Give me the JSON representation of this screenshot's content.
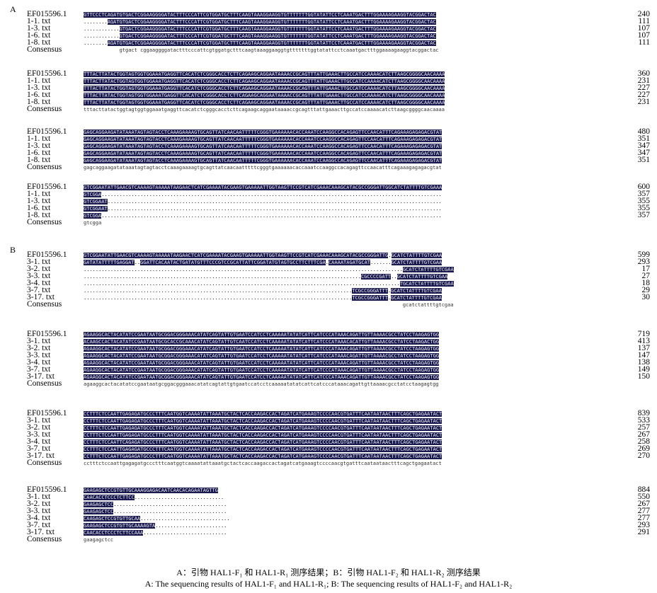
{
  "figure": {
    "panel_a_label": "A",
    "panel_b_label": "B",
    "caption_cn": "A：引物 HAL1-F₁ 和 HAL1-R₁ 测序结果；B：引物 HAL1-F₂ 和 HAL1-R₂ 测序结果",
    "caption_en": "A: The sequencing results of HAL1-F₁ and HAL1-R₁; B: The sequencing results of HAL1-F₂ and HAL1-R₂"
  },
  "colors": {
    "identical": "#1a1a4e",
    "primer": "#8fd3d6",
    "mismatch": "#f1e27c"
  },
  "panel_a": {
    "blocks": [
      {
        "rows": [
          {
            "name": "EF015596.1",
            "num": "240",
            "seq": "GTTCCCTCAGATGTGACTCGGAAGGGGATACTTTCCCATTCGTGGATGCTTTCAAGTAAAGGAAGGTGTTTTTTTGGTATATTCCTCAAATGACTTTGGAAAAGAAGGTACGGACTAC"
          },
          {
            "name": "1-1. txt",
            "num": "111",
            "seq": "........AGATGTGACTCGGAAGGGGATACTTTCCCATTCGTGGATGCTTTCAAGTAAAGGAAGGTGTTTTTTTGGTATATTCCTCAAATGACTTTGGAAAAGAAGGTACGGACTAC"
          },
          {
            "name": "1-3. txt",
            "num": "107",
            "seq": "............GTGACTCGGAAGGGGATACTTTCCCATTCGTGGATGCTTTCAAGTAAAGGAAGGTGTTTTTTTGGTATATTCCTCAAATGACTTTGGAAAAGAAGGTACGGACTAC"
          },
          {
            "name": "1-6. txt",
            "num": "107",
            "seq": "............GTGACTCGGAAGGGGATACTTTCCCATTCGTGGATGCTTTCAAGTAAAGGAAGGTGTTTTTTTGGTATATTCCTCAAATGACTTTGGAAAAGAAGGTACGGACTAC"
          },
          {
            "name": "1-8. txt",
            "num": "111",
            "seq": "........AGATGTGACTCGGAAGGGGATACTTTCCCATTCGTGGATGCTTTCAAGTAAAGGAAGGTGTTTTTTTGGTATATTCCTCAAATGACTTTGGAAAAGAAGGTACGGACTAC"
          },
          {
            "name": "Consensus",
            "num": "",
            "seq": "            gtgact cggaaggggatactttcccattcgtggatgctttcaagtaaaggaaggtgtttttttggtatattcctcaaatgactttggaaaagaaggtacggactac",
            "consensus": true
          }
        ]
      },
      {
        "rows": [
          {
            "name": "EF015596.1",
            "num": "360",
            "seq": "TTTACTTATACTGGTAGTGGTGGAAATGAGGTTCACATCTCGGGCACCTCTTCAGAAGCAGGAATAAAACCGCAGTTTATTGAAACTTGCCATCCAAAACATCTTAAGCGGGGCAACAAAA"
          },
          {
            "name": "1-1. txt",
            "num": "231",
            "seq": "TTTACTTATACTGGTAGTGGTGGAAATGAGGTTCACATCTCGGGCACCTCTTCAGAAGCAGGAATAAAACCGCAGTTTATTGAAACTTGCCATCCAAAACATCTTAAGCGGGGCAACAAAA"
          },
          {
            "name": "1-3. txt",
            "num": "227",
            "seq": "TTTACTTATACTGGTAGTGGTGGAAATGAGGTTCACATCTCGGGCACCTCTTCAGAAGCAGGAATAAAACCGCAGTTTATTGAAACTTGCCATCCAAAACATCTTAAGCGGGGCAACAAAA"
          },
          {
            "name": "1-6. txt",
            "num": "227",
            "seq": "TTTACTTATACTGGTAGTGGTGGAAATGAGGTTCACATCTCGGGCACCTCTTCAGAAGCAGGAATAAAACCGCAGTTTATTGAAACTTGCCATCCAAAACATCTTAAGCGGGGCAACAAAA"
          },
          {
            "name": "1-8. txt",
            "num": "231",
            "seq": "TTTACTTATACTGGTAGTGGTGGAAATGAGGTTCACATCTCGGGCACCTCTTCAGAAGCAGGAATAAAACCGCAGTTTATTGAAACTTGCCATCCAAAACATCTTAAGCGGGGCAACAAAA"
          },
          {
            "name": "Consensus",
            "num": "",
            "seq": "tttacttatactggtagtggtggaaatgaggttcacatctcgggcacctcttcagaagcaggaataaaaccgcagtttattgaaacttgccatccaaaacatcttaagcggggcaacaaaa",
            "consensus": true
          }
        ]
      },
      {
        "rows": [
          {
            "name": "EF015596.1",
            "num": "480",
            "seq": "GAGCAGGAAGATATAAATAGTAGTACCTCAAAGAAAAGTGCAGTTATCAACAATTTTTCGGGTGAAAAAACACCAAATCCAAGGCCACAGAGTTCCAACATTTCAGAAAGAGAGACGTAT"
          },
          {
            "name": "1-1. txt",
            "num": "351",
            "seq": "GAGCAGGAAGATATAAATAGTAGTACCTCAAAGAAAAGTGCAGTTATCAACAATTTTTCGGGTGAAAAAACACCAAATCCAAGGCCACAGAGTTCCAACATTTCAGAAAGAGAGACGTAT"
          },
          {
            "name": "1-3. txt",
            "num": "347",
            "seq": "GAGCAGGAAGATATAAATAGTAGTACCTCAAAGAAAAGTGCAGTTATCAACAATTTTTCGGGTGAAAAAACACCAAATCCAAGGCCACAGAGTTCCAACATTTCAGAAAGAGAGACGTAT"
          },
          {
            "name": "1-6. txt",
            "num": "347",
            "seq": "GAGCAGGAAGATATAAATAGTAGTACCTCAAAGAAAAGTGCAGTTATCAACAATTTTTCGGGTGAAAAAACACCAAATCCAAGGCCACAGAGTTCCAACATTTCAGAAAGAGAGACGTAT"
          },
          {
            "name": "1-8. txt",
            "num": "351",
            "seq": "GAGCAGGAAGATATAAATAGTAGTACCTCAAAGAAAAGTGCAGTTATCAACAATTTTTCGGGTGAAAAAACACCAAATCCAAGGCCACAGAGTTCCAACATTTCAGAAAGAGAGACGTAT"
          },
          {
            "name": "Consensus",
            "num": "",
            "seq": "gagcaggaagatataaatagtagtacctcaaagaaaagtgcagttatcaacaatttttcgggtgaaaaaacaccaaatccaaggccacagagttccaacatttcagaaagagagacgtat",
            "consensus": true
          }
        ]
      },
      {
        "rows": [
          {
            "name": "EF015596.1",
            "num": "600",
            "seq": "GTCGGAATATTGAACGTCAAAAGTAAAAATAAGAACTCATCGAAAATACGAAGTGAAAAATTGGTAAGTTCCGTCATCGAAACAAAGCATACGCCGGGATTGGCATCTATTTTGTCGAAA"
          },
          {
            "name": "1-1. txt",
            "num": "357",
            "seq": "GTCGGA.................................................................................................................."
          },
          {
            "name": "1-3. txt",
            "num": "355",
            "seq": "GTCGGAAT................................................................................................................"
          },
          {
            "name": "1-6. txt",
            "num": "355",
            "seq": "GTCGGAAT................................................................................................................"
          },
          {
            "name": "1-8. txt",
            "num": "357",
            "seq": "GTCGGA.................................................................................................................."
          },
          {
            "name": "Consensus",
            "num": "",
            "seq": "gtcgga",
            "consensus": true
          }
        ]
      }
    ]
  },
  "panel_b": {
    "blocks": [
      {
        "rows": [
          {
            "name": "EF015596.1",
            "num": "599",
            "seq": "GTCGGAATATTGAACGTCAAAAGTAAAAATAAGAACTCATCGAAAATACGAAGTGAAAAATTGGTAAGTTCCGTCATCGAAACAAAGCATACGCCGGGATTG.GCATCTATTTTGTCGAA"
          },
          {
            "name": "3-1. txt",
            "num": "293",
            "seq": "GATATATTTTTGAGGAT..GGATTCACAATACTGATATGTTTCCCGTCCGCATTATTCGGATATGTAGTGCCTTCTTTCGA.CAAAATAGATGCAT.......GCATCTATTTTGTCGAA"
          },
          {
            "name": "3-2. txt",
            "num": "17",
            "seq": "...........................................................................................................GCATCTATTTTGTCGAA"
          },
          {
            "name": "3-3. txt",
            "num": "27",
            "seq": ".............................................................................................CGCCCCGATT..GCATCTATTTTGTCGAA"
          },
          {
            "name": "3-4. txt",
            "num": "18",
            "seq": "..........................................................................................................TGCATCTATTTTGTCGAA"
          },
          {
            "name": "3-7. txt",
            "num": "29",
            "seq": "..........................................................................................TCGCCGGGATTT.GCATCTATTTTGTCGAA"
          },
          {
            "name": "3-17. txt",
            "num": "30",
            "seq": "..........................................................................................TCGCCGGGATTT.GCATCTATTTTGTCGAA"
          },
          {
            "name": "Consensus",
            "num": "",
            "seq": "                                                                                                           gcatctattttgtcgaa",
            "consensus": true
          }
        ]
      },
      {
        "rows": [
          {
            "name": "EF015596.1",
            "num": "719",
            "seq": "AGAAGGCACTACATATCCGAATAATGCGGACGGGAAACATATCAGTATTGTGAATCCATCCTCAAAAATATATCATTCATCCCATAAACAGATTGTTAAAACGCCTATCCTAAGAGTGG"
          },
          {
            "name": "3-1. txt",
            "num": "413",
            "seq": "ACAAGCCACTACATATCCGAATAATGCGCACCGCAAACATATCAGTATTGTCAATCCATCCTCAAAAATATATCATTCATCCCATAAACACATTGTTAAAACGCCTATCCTAAGACTGG"
          },
          {
            "name": "3-2. txt",
            "num": "137",
            "seq": "AGAAGGCACTACATATCCGAATAATGCGGACGGGAAACATATCAGTATTGTGAATCCATCCTCAAAAATATATCATTCATCCCATAAACAGATTGTTAAAACGCCTATCCTAAGAGTGG"
          },
          {
            "name": "3-3. txt",
            "num": "147",
            "seq": "AGAAGGCACTACATATCCGAATAATGCGGACGGGAAACATATCAGTATTGTGAATCCATCCTCAAAAATATATCATTCATCCCATAAACAGATTGTTAAAACGCCTATCCTAAGAGTGG"
          },
          {
            "name": "3-4. txt",
            "num": "138",
            "seq": "AGAAGGCACTACATATCCGAATAATGCGGACGGGAAACATATCAGTATTGTGAATCCATCCTCAAAAATATATCATTCATCCCATAAACAGATTGTTAAAACGCCTATCCTAAGAGTGG"
          },
          {
            "name": "3-7. txt",
            "num": "149",
            "seq": "AGAAGGCACTACATATCCGAATAATGCGGACGGGAAACATATCAGTATTGTGAATCCATCCTCAAAAATATATCATTCATCCCATAAACAGATTGTTAAAACGCCTATCCTAAGAGTGG"
          },
          {
            "name": "3-17. txt",
            "num": "150",
            "seq": "AGAAGGCACTACATATCCGAATAATGCGGACGGGAAACATATCAGTATTGTGAATCCATCCTCAAAAATATATCATTCATCCCATAAACAGATTGTTAAAACGCCTATCCTAAGAGTGG"
          },
          {
            "name": "Consensus",
            "num": "",
            "seq": "agaaggcactacatatccgaataatgcggacgggaaacatatcagtattgtgaatccatcctcaaaaatatatcattcatcccataaacagattgttaaaacgcctatcctaagagtgg",
            "consensus": true
          }
        ]
      },
      {
        "rows": [
          {
            "name": "EF015596.1",
            "num": "839",
            "seq": "CCTTTCTCCAATTGAGAGATGCCCTTTCAATGGTCAAAATATTAAATGCTACTCACCAAGACCACTAGATCATGAAAGTCCCCAACGTGATTTCAATAATAACTTTCAGCTGAGAATACT"
          },
          {
            "name": "3-1. txt",
            "num": "533",
            "seq": "CCTTTCTCCAATTGAGAGATGCCCTTTCAATGGTCAAAATATTAAATGCTACTCACCAAGACCACTAGATCATGAAAGTCCCCAACGTGATTTCAATAATAACTTTCAGCTGAGAATACT"
          },
          {
            "name": "3-2. txt",
            "num": "257",
            "seq": "CCTTTCTCCAATTGAGAGATGCCCTTTCAATGGTCAAAATATTAAATGCTACTCACCAAGACCACTAGATCATGAAAGTCCCCAACGTGATTTCAATAATAACTTTCAGCTGAGAATACT"
          },
          {
            "name": "3-3. txt",
            "num": "267",
            "seq": "CCTTTCTCCAATTGAGAGATGCCCTTTCAATGGTCAAAATATTAAATGCTACTCACCAAGACCACTAGATCATGAAAGTCCCCAACGTGATTTCAATAATAACTTTCAGCTGAGAATACT"
          },
          {
            "name": "3-4. txt",
            "num": "258",
            "seq": "CCTTTCTCCAATTCAGAGATGCCCTTTCAATGGTCAAAATATTAAATGCTACTCACCAAGACCACTAGATCATGAAAGTCCCCAACGTGATTTCAATAATAACTTTCAGCTGAGAATACT"
          },
          {
            "name": "3-7. txt",
            "num": "269",
            "seq": "CCTTTCTCCAATTGAGAGATGCCCTTTCAATGGTCAAAATATTAAATGCTACTCACCAAGACCACTAGATCATGAAAGTCCCCAACGTGATTTCAATAATAACTTTCAGCTGAGAATACT"
          },
          {
            "name": "3-17. txt",
            "num": "270",
            "seq": "CCTTTCTCCAATTGAGAGATGCCCTTTCAATGGTCAAAATATTAAATGCTACTCACCAAGACCACTAGATCATGAAAGTCCCCAACGTGATTTCAATAATAACTTTCAGCTGAGAATACT"
          },
          {
            "name": "Consensus",
            "num": "",
            "seq": "cctttctccaattgagagatgccctttcaatggtcaaaatattaaatgctactcaccaagaccactagatcatgaaagtccccaacgtgatttcaataataactttcagctgagaatact",
            "consensus": true
          }
        ]
      },
      {
        "rows": [
          {
            "name": "EF015596.1",
            "num": "884",
            "seq": "GAAGAGCTCCGTGTTGCAAAGGAGACAATCAACACAGAATAGTTG"
          },
          {
            "name": "3-1. txt",
            "num": "550",
            "seq": "CAACACCTCCCTCTTCC.............................."
          },
          {
            "name": "3-2. txt",
            "num": "267",
            "seq": "GAAGAGCTCC......................................"
          },
          {
            "name": "3-3. txt",
            "num": "277",
            "seq": "GAAGAGCTCC......................................"
          },
          {
            "name": "3-4. txt",
            "num": "277",
            "seq": "CAAGAGCTCCGTGTTGCAA.............................."
          },
          {
            "name": "3-7. txt",
            "num": "293",
            "seq": "GAAGAGCTCCGTGTTGCAAAAGTA........................"
          },
          {
            "name": "3-17. txt",
            "num": "291",
            "seq": "CAACACCTCCCTCTTCCAAA............................"
          },
          {
            "name": "Consensus",
            "num": "",
            "seq": "gaagagctcc",
            "consensus": true
          }
        ]
      }
    ]
  }
}
